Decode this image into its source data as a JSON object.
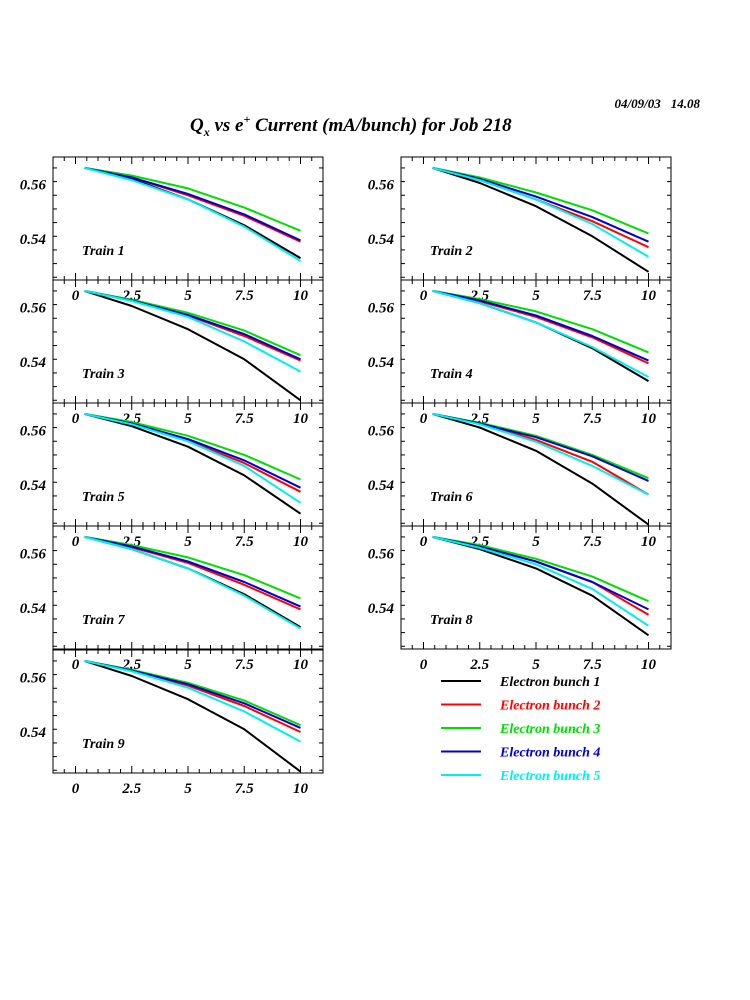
{
  "header": {
    "date": "04/09/03",
    "time": "14.08",
    "title_q": "Q",
    "title_q_sub": "x",
    "title_vs": " vs e",
    "title_sup": "+",
    "title_rest": " Current (mA/bunch) for Job 218"
  },
  "colors": {
    "Electron bunch 1": "#000000",
    "Electron bunch 2": "#ff0000",
    "Electron bunch 3": "#00dd00",
    "Electron bunch 4": "#0000cc",
    "Electron bunch 5": "#00eeee"
  },
  "chart_data": {
    "type": "line",
    "title": "Qx vs e+ Current (mA/bunch) for Job 218",
    "xlabel": "",
    "ylabel": "",
    "xlim": [
      -1,
      11
    ],
    "ylim": [
      0.525,
      0.57
    ],
    "x_ticks": [
      "0",
      "2.5",
      "5",
      "7.5",
      "10"
    ],
    "y_ticks": [
      "0.54",
      "0.56"
    ],
    "x": [
      0.4,
      2.5,
      5,
      7.5,
      10
    ],
    "legend": [
      "Electron bunch 1",
      "Electron bunch 2",
      "Electron bunch 3",
      "Electron bunch 4",
      "Electron bunch 5"
    ],
    "panels": [
      {
        "label": "Train 1",
        "series": [
          {
            "name": "Electron bunch 1",
            "values": [
              0.566,
              0.562,
              0.5545,
              0.545,
              0.533
            ]
          },
          {
            "name": "Electron bunch 2",
            "values": [
              0.566,
              0.5625,
              0.556,
              0.5485,
              0.539
            ]
          },
          {
            "name": "Electron bunch 3",
            "values": [
              0.566,
              0.5632,
              0.5585,
              0.5515,
              0.543
            ]
          },
          {
            "name": "Electron bunch 4",
            "values": [
              0.566,
              0.5625,
              0.5565,
              0.549,
              0.5395
            ]
          },
          {
            "name": "Electron bunch 5",
            "values": [
              0.566,
              0.5615,
              0.5545,
              0.5445,
              0.532
            ]
          }
        ]
      },
      {
        "label": "Train 2",
        "series": [
          {
            "name": "Electron bunch 1",
            "values": [
              0.566,
              0.5605,
              0.552,
              0.541,
              0.528
            ]
          },
          {
            "name": "Electron bunch 2",
            "values": [
              0.566,
              0.5615,
              0.5545,
              0.5465,
              0.537
            ]
          },
          {
            "name": "Electron bunch 3",
            "values": [
              0.566,
              0.5625,
              0.557,
              0.5505,
              0.542
            ]
          },
          {
            "name": "Electron bunch 4",
            "values": [
              0.566,
              0.562,
              0.5555,
              0.548,
              0.539
            ]
          },
          {
            "name": "Electron bunch 5",
            "values": [
              0.566,
              0.5615,
              0.5545,
              0.5455,
              0.5335
            ]
          }
        ]
      },
      {
        "label": "Train 3",
        "series": [
          {
            "name": "Electron bunch 1",
            "values": [
              0.566,
              0.5605,
              0.552,
              0.541,
              0.526
            ]
          },
          {
            "name": "Electron bunch 2",
            "values": [
              0.566,
              0.5625,
              0.557,
              0.5495,
              0.5405
            ]
          },
          {
            "name": "Electron bunch 3",
            "values": [
              0.566,
              0.5628,
              0.558,
              0.5515,
              0.5425
            ]
          },
          {
            "name": "Electron bunch 4",
            "values": [
              0.566,
              0.5625,
              0.5572,
              0.5502,
              0.541
            ]
          },
          {
            "name": "Electron bunch 5",
            "values": [
              0.566,
              0.5623,
              0.5565,
              0.5475,
              0.5365
            ]
          }
        ]
      },
      {
        "label": "Train 4",
        "series": [
          {
            "name": "Electron bunch 1",
            "values": [
              0.566,
              0.5615,
              0.5545,
              0.545,
              0.533
            ]
          },
          {
            "name": "Electron bunch 2",
            "values": [
              0.566,
              0.5622,
              0.5565,
              0.549,
              0.5395
            ]
          },
          {
            "name": "Electron bunch 3",
            "values": [
              0.566,
              0.563,
              0.5585,
              0.552,
              0.5435
            ]
          },
          {
            "name": "Electron bunch 4",
            "values": [
              0.566,
              0.5625,
              0.557,
              0.5495,
              0.5405
            ]
          },
          {
            "name": "Electron bunch 5",
            "values": [
              0.566,
              0.5615,
              0.5545,
              0.5455,
              0.5345
            ]
          }
        ]
      },
      {
        "label": "Train 5",
        "series": [
          {
            "name": "Electron bunch 1",
            "values": [
              0.566,
              0.5615,
              0.554,
              0.5435,
              0.5295
            ]
          },
          {
            "name": "Electron bunch 2",
            "values": [
              0.566,
              0.5622,
              0.5562,
              0.548,
              0.5375
            ]
          },
          {
            "name": "Electron bunch 3",
            "values": [
              0.566,
              0.563,
              0.558,
              0.551,
              0.542
            ]
          },
          {
            "name": "Electron bunch 4",
            "values": [
              0.566,
              0.5625,
              0.5568,
              0.549,
              0.539
            ]
          },
          {
            "name": "Electron bunch 5",
            "values": [
              0.566,
              0.5622,
              0.556,
              0.547,
              0.5335
            ]
          }
        ]
      },
      {
        "label": "Train 6",
        "series": [
          {
            "name": "Electron bunch 1",
            "values": [
              0.566,
              0.561,
              0.5525,
              0.5405,
              0.5255
            ]
          },
          {
            "name": "Electron bunch 2",
            "values": [
              0.566,
              0.5625,
              0.5565,
              0.5485,
              0.5365
            ]
          },
          {
            "name": "Electron bunch 3",
            "values": [
              0.566,
              0.5628,
              0.558,
              0.551,
              0.5425
            ]
          },
          {
            "name": "Electron bunch 4",
            "values": [
              0.566,
              0.5625,
              0.5575,
              0.5505,
              0.5415
            ]
          },
          {
            "name": "Electron bunch 5",
            "values": [
              0.566,
              0.5622,
              0.5558,
              0.547,
              0.5365
            ]
          }
        ]
      },
      {
        "label": "Train 7",
        "series": [
          {
            "name": "Electron bunch 1",
            "values": [
              0.566,
              0.5615,
              0.5545,
              0.545,
              0.533
            ]
          },
          {
            "name": "Electron bunch 2",
            "values": [
              0.566,
              0.5622,
              0.5565,
              0.5485,
              0.5395
            ]
          },
          {
            "name": "Electron bunch 3",
            "values": [
              0.566,
              0.563,
              0.5585,
              0.552,
              0.5435
            ]
          },
          {
            "name": "Electron bunch 4",
            "values": [
              0.566,
              0.5625,
              0.557,
              0.5495,
              0.5405
            ]
          },
          {
            "name": "Electron bunch 5",
            "values": [
              0.566,
              0.5615,
              0.5545,
              0.5445,
              0.5325
            ]
          }
        ]
      },
      {
        "label": "Train 8",
        "series": [
          {
            "name": "Electron bunch 1",
            "values": [
              0.566,
              0.5615,
              0.5545,
              0.5445,
              0.53
            ]
          },
          {
            "name": "Electron bunch 2",
            "values": [
              0.566,
              0.5625,
              0.557,
              0.5495,
              0.5375
            ]
          },
          {
            "name": "Electron bunch 3",
            "values": [
              0.566,
              0.563,
              0.558,
              0.5515,
              0.5425
            ]
          },
          {
            "name": "Electron bunch 4",
            "values": [
              0.566,
              0.5625,
              0.557,
              0.5495,
              0.5395
            ]
          },
          {
            "name": "Electron bunch 5",
            "values": [
              0.566,
              0.562,
              0.556,
              0.547,
              0.5335
            ]
          }
        ]
      },
      {
        "label": "Train 9",
        "series": [
          {
            "name": "Electron bunch 1",
            "values": [
              0.566,
              0.5605,
              0.552,
              0.541,
              0.5255
            ]
          },
          {
            "name": "Electron bunch 2",
            "values": [
              0.566,
              0.5625,
              0.557,
              0.5495,
              0.54
            ]
          },
          {
            "name": "Electron bunch 3",
            "values": [
              0.566,
              0.5628,
              0.558,
              0.5515,
              0.5425
            ]
          },
          {
            "name": "Electron bunch 4",
            "values": [
              0.566,
              0.5625,
              0.5575,
              0.5505,
              0.5415
            ]
          },
          {
            "name": "Electron bunch 5",
            "values": [
              0.566,
              0.5622,
              0.5562,
              0.5475,
              0.5365
            ]
          }
        ]
      }
    ]
  }
}
